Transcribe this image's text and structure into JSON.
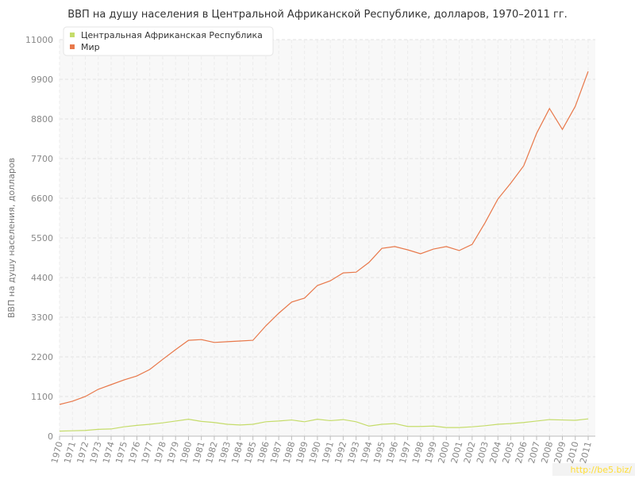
{
  "chart_data": {
    "type": "line",
    "title": "ВВП на душу населения в Центральной Африканской Республике, долларов, 1970–2011 гг.",
    "y_label": "ВВП на душу населения, долларов",
    "watermark": "http://be5.biz/",
    "categories": [
      "1970",
      "1971",
      "1972",
      "1973",
      "1974",
      "1975",
      "1976",
      "1977",
      "1978",
      "1979",
      "1980",
      "1981",
      "1982",
      "1983",
      "1984",
      "1985",
      "1986",
      "1987",
      "1988",
      "1989",
      "1990",
      "1991",
      "1992",
      "1993",
      "1994",
      "1995",
      "1996",
      "1997",
      "1998",
      "1999",
      "2000",
      "2001",
      "2002",
      "2003",
      "2004",
      "2005",
      "2006",
      "2007",
      "2008",
      "2009",
      "2010",
      "2011"
    ],
    "series": [
      {
        "name": "Центральная Африканская Республика",
        "color": "#c5dc6a",
        "values": [
          140,
          150,
          160,
          190,
          200,
          260,
          300,
          330,
          370,
          420,
          470,
          410,
          380,
          330,
          310,
          330,
          400,
          420,
          450,
          400,
          470,
          430,
          460,
          400,
          280,
          330,
          350,
          270,
          270,
          280,
          240,
          240,
          260,
          290,
          330,
          350,
          380,
          420,
          460,
          450,
          440,
          480
        ]
      },
      {
        "name": "Мир",
        "color": "#e8784a",
        "values": [
          880,
          970,
          1100,
          1300,
          1430,
          1560,
          1670,
          1850,
          2130,
          2400,
          2660,
          2680,
          2600,
          2620,
          2640,
          2660,
          3060,
          3410,
          3720,
          3830,
          4180,
          4310,
          4530,
          4550,
          4820,
          5210,
          5260,
          5170,
          5060,
          5190,
          5260,
          5150,
          5320,
          5920,
          6580,
          7020,
          7500,
          8400,
          9090,
          8510,
          9150,
          10120
        ]
      }
    ],
    "ylim": [
      0,
      11000
    ],
    "yticks": [
      0,
      1100,
      2200,
      3300,
      4400,
      5500,
      6600,
      7700,
      8800,
      9900,
      11000
    ],
    "grid": true,
    "legend": "top-left"
  }
}
